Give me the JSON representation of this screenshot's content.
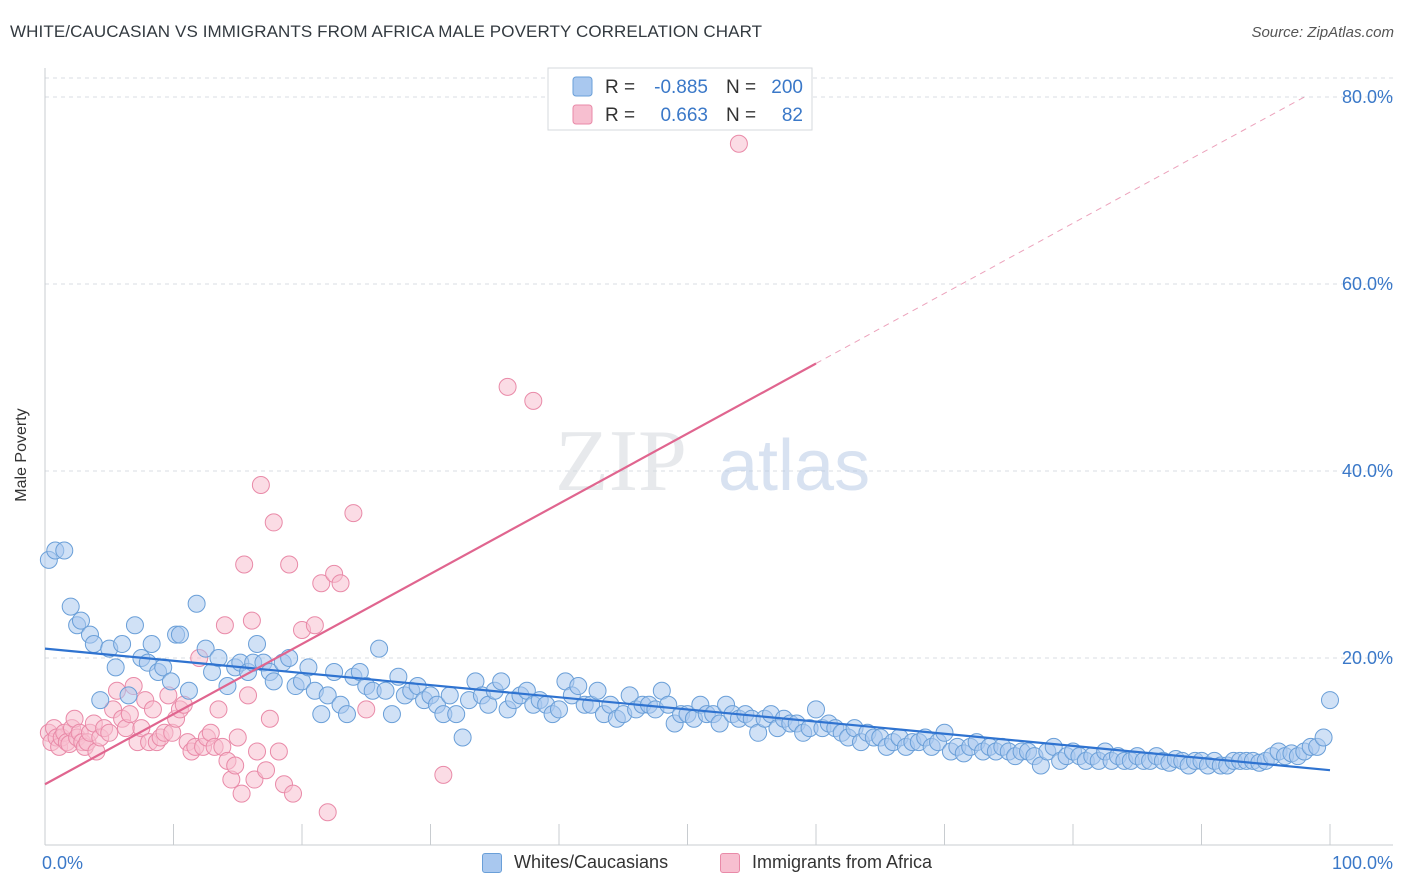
{
  "header": {
    "title": "WHITE/CAUCASIAN VS IMMIGRANTS FROM AFRICA MALE POVERTY CORRELATION CHART",
    "source": "Source: ZipAtlas.com"
  },
  "watermark": {
    "zip": "ZIP",
    "atlas": "atlas"
  },
  "legend_top": {
    "rows": [
      {
        "r_label": "R =",
        "r_value": "-0.885",
        "n_label": "N =",
        "n_value": "200"
      },
      {
        "r_label": "R =",
        "r_value": "0.663",
        "n_label": "N =",
        "n_value": "82"
      }
    ]
  },
  "legend_bottom": {
    "items": [
      "Whites/Caucasians",
      "Immigrants from Africa"
    ]
  },
  "colors": {
    "blue_fill": "#a9c8ef",
    "blue_stroke": "#6a9fd8",
    "blue_line": "#2f73d0",
    "pink_fill": "#f7bfd0",
    "pink_stroke": "#e98aa8",
    "pink_line": "#e0658f",
    "tick_text": "#3a78c8",
    "grid": "#d8dde3"
  },
  "chart_data": {
    "type": "scatter",
    "title": "WHITE/CAUCASIAN VS IMMIGRANTS FROM AFRICA MALE POVERTY CORRELATION CHART",
    "xlabel": "",
    "ylabel": "Male Poverty",
    "xlim": [
      0,
      100
    ],
    "ylim": [
      0,
      80
    ],
    "x_tick_labels": [
      "0.0%",
      "100.0%"
    ],
    "y_ticks": [
      20,
      40,
      60,
      80
    ],
    "y_tick_labels": [
      "20.0%",
      "40.0%",
      "60.0%",
      "80.0%"
    ],
    "grid": "horizontal dashed",
    "legend": "top-center",
    "series": [
      {
        "name": "Whites/Caucasians",
        "R": -0.885,
        "N": 200,
        "trend": {
          "x": [
            0,
            100
          ],
          "y": [
            21.0,
            8.0
          ]
        },
        "points": [
          [
            0.3,
            30.5
          ],
          [
            0.8,
            31.5
          ],
          [
            1.5,
            31.5
          ],
          [
            2,
            25.5
          ],
          [
            2.5,
            23.5
          ],
          [
            2.8,
            24
          ],
          [
            3.5,
            22.5
          ],
          [
            3.8,
            21.5
          ],
          [
            4.3,
            15.5
          ],
          [
            5,
            21
          ],
          [
            5.5,
            19
          ],
          [
            6,
            21.5
          ],
          [
            6.5,
            16
          ],
          [
            7,
            23.5
          ],
          [
            7.5,
            20
          ],
          [
            8,
            19.5
          ],
          [
            8.3,
            21.5
          ],
          [
            8.8,
            18.5
          ],
          [
            9.2,
            19
          ],
          [
            9.8,
            17.5
          ],
          [
            10.2,
            22.5
          ],
          [
            10.5,
            22.5
          ],
          [
            11.2,
            16.5
          ],
          [
            11.8,
            25.8
          ],
          [
            12.5,
            21
          ],
          [
            13,
            18.5
          ],
          [
            13.5,
            20
          ],
          [
            14.2,
            17
          ],
          [
            14.8,
            19
          ],
          [
            15.2,
            19.5
          ],
          [
            15.8,
            18.5
          ],
          [
            16.2,
            19.5
          ],
          [
            16.5,
            21.5
          ],
          [
            17,
            19.5
          ],
          [
            17.5,
            18.5
          ],
          [
            17.8,
            17.5
          ],
          [
            18.5,
            19.5
          ],
          [
            19,
            20
          ],
          [
            19.5,
            17
          ],
          [
            20,
            17.5
          ],
          [
            20.5,
            19
          ],
          [
            21,
            16.5
          ],
          [
            21.5,
            14
          ],
          [
            22,
            16
          ],
          [
            22.5,
            18.5
          ],
          [
            23,
            15
          ],
          [
            23.5,
            14
          ],
          [
            24,
            18
          ],
          [
            24.5,
            18.5
          ],
          [
            25,
            17
          ],
          [
            25.5,
            16.5
          ],
          [
            26,
            21
          ],
          [
            26.5,
            16.5
          ],
          [
            27,
            14
          ],
          [
            27.5,
            18
          ],
          [
            28,
            16
          ],
          [
            28.5,
            16.5
          ],
          [
            29,
            17
          ],
          [
            29.5,
            15.5
          ],
          [
            30,
            16
          ],
          [
            30.5,
            15
          ],
          [
            31,
            14
          ],
          [
            31.5,
            16
          ],
          [
            32,
            14
          ],
          [
            32.5,
            11.5
          ],
          [
            33,
            15.5
          ],
          [
            33.5,
            17.5
          ],
          [
            34,
            16
          ],
          [
            34.5,
            15
          ],
          [
            35,
            16.5
          ],
          [
            35.5,
            17.5
          ],
          [
            36,
            14.5
          ],
          [
            36.5,
            15.5
          ],
          [
            37,
            16
          ],
          [
            37.5,
            16.5
          ],
          [
            38,
            15
          ],
          [
            38.5,
            15.5
          ],
          [
            39,
            15
          ],
          [
            39.5,
            14
          ],
          [
            40,
            14.5
          ],
          [
            40.5,
            17.5
          ],
          [
            41,
            16
          ],
          [
            41.5,
            17
          ],
          [
            42,
            15
          ],
          [
            42.5,
            15
          ],
          [
            43,
            16.5
          ],
          [
            43.5,
            14
          ],
          [
            44,
            15
          ],
          [
            44.5,
            13.5
          ],
          [
            45,
            14
          ],
          [
            45.5,
            16
          ],
          [
            46,
            14.5
          ],
          [
            46.5,
            15
          ],
          [
            47,
            15
          ],
          [
            47.5,
            14.5
          ],
          [
            48,
            16.5
          ],
          [
            48.5,
            15
          ],
          [
            49,
            13
          ],
          [
            49.5,
            14
          ],
          [
            50,
            14
          ],
          [
            50.5,
            13.5
          ],
          [
            51,
            15
          ],
          [
            51.5,
            14
          ],
          [
            52,
            14
          ],
          [
            52.5,
            13
          ],
          [
            53,
            15
          ],
          [
            53.5,
            14
          ],
          [
            54,
            13.5
          ],
          [
            54.5,
            14
          ],
          [
            55,
            13.5
          ],
          [
            55.5,
            12
          ],
          [
            56,
            13.5
          ],
          [
            56.5,
            14
          ],
          [
            57,
            12.5
          ],
          [
            57.5,
            13.5
          ],
          [
            58,
            13
          ],
          [
            58.5,
            13
          ],
          [
            59,
            12
          ],
          [
            59.5,
            12.5
          ],
          [
            60,
            14.5
          ],
          [
            60.5,
            12.5
          ],
          [
            61,
            13
          ],
          [
            61.5,
            12.5
          ],
          [
            62,
            12
          ],
          [
            62.5,
            11.5
          ],
          [
            63,
            12.5
          ],
          [
            63.5,
            11
          ],
          [
            64,
            12
          ],
          [
            64.5,
            11.5
          ],
          [
            65,
            11.5
          ],
          [
            65.5,
            10.5
          ],
          [
            66,
            11
          ],
          [
            66.5,
            11.5
          ],
          [
            67,
            10.5
          ],
          [
            67.5,
            11
          ],
          [
            68,
            11
          ],
          [
            68.5,
            11.5
          ],
          [
            69,
            10.5
          ],
          [
            69.5,
            11
          ],
          [
            70,
            12
          ],
          [
            70.5,
            10
          ],
          [
            71,
            10.5
          ],
          [
            71.5,
            9.8
          ],
          [
            72,
            10.5
          ],
          [
            72.5,
            11
          ],
          [
            73,
            10
          ],
          [
            73.5,
            10.5
          ],
          [
            74,
            10
          ],
          [
            74.5,
            10.5
          ],
          [
            75,
            10
          ],
          [
            75.5,
            9.5
          ],
          [
            76,
            10
          ],
          [
            76.5,
            10
          ],
          [
            77,
            9.5
          ],
          [
            77.5,
            8.5
          ],
          [
            78,
            10
          ],
          [
            78.5,
            10.5
          ],
          [
            79,
            9
          ],
          [
            79.5,
            9.5
          ],
          [
            80,
            10
          ],
          [
            80.5,
            9.5
          ],
          [
            81,
            9
          ],
          [
            81.5,
            9.5
          ],
          [
            82,
            9
          ],
          [
            82.5,
            10
          ],
          [
            83,
            9
          ],
          [
            83.5,
            9.5
          ],
          [
            84,
            9
          ],
          [
            84.5,
            9
          ],
          [
            85,
            9.5
          ],
          [
            85.5,
            9
          ],
          [
            86,
            9
          ],
          [
            86.5,
            9.5
          ],
          [
            87,
            9
          ],
          [
            87.5,
            8.8
          ],
          [
            88,
            9.2
          ],
          [
            88.5,
            9
          ],
          [
            89,
            8.5
          ],
          [
            89.5,
            9
          ],
          [
            90,
            9
          ],
          [
            90.5,
            8.5
          ],
          [
            91,
            9
          ],
          [
            91.5,
            8.5
          ],
          [
            92,
            8.5
          ],
          [
            92.5,
            9
          ],
          [
            93,
            9
          ],
          [
            93.5,
            9
          ],
          [
            94,
            9
          ],
          [
            94.5,
            8.8
          ],
          [
            95,
            9
          ],
          [
            95.5,
            9.5
          ],
          [
            96,
            10
          ],
          [
            96.5,
            9.5
          ],
          [
            97,
            9.8
          ],
          [
            97.5,
            9.5
          ],
          [
            98,
            10
          ],
          [
            98.5,
            10.5
          ],
          [
            99,
            10.5
          ],
          [
            99.5,
            11.5
          ],
          [
            100,
            15.5
          ]
        ]
      },
      {
        "name": "Immigrants from Africa",
        "R": 0.663,
        "N": 82,
        "trend": {
          "x": [
            0,
            60
          ],
          "y": [
            6.5,
            51.5
          ]
        },
        "trend_dashed": {
          "x": [
            60,
            98
          ],
          "y": [
            51.5,
            80
          ]
        },
        "points": [
          [
            0.3,
            12
          ],
          [
            0.5,
            11
          ],
          [
            0.7,
            12.5
          ],
          [
            0.9,
            11.5
          ],
          [
            1.1,
            10.5
          ],
          [
            1.3,
            11.5
          ],
          [
            1.5,
            12
          ],
          [
            1.7,
            11
          ],
          [
            1.9,
            10.8
          ],
          [
            2.1,
            12.5
          ],
          [
            2.3,
            13.5
          ],
          [
            2.5,
            11.5
          ],
          [
            2.7,
            12
          ],
          [
            2.9,
            11
          ],
          [
            3.1,
            10.5
          ],
          [
            3.3,
            11
          ],
          [
            3.5,
            12
          ],
          [
            3.8,
            13
          ],
          [
            4,
            10
          ],
          [
            4.3,
            11.5
          ],
          [
            4.6,
            12.5
          ],
          [
            5,
            12
          ],
          [
            5.3,
            14.5
          ],
          [
            5.6,
            16.5
          ],
          [
            6,
            13.5
          ],
          [
            6.3,
            12.5
          ],
          [
            6.6,
            14
          ],
          [
            6.9,
            17
          ],
          [
            7.2,
            11
          ],
          [
            7.5,
            12.5
          ],
          [
            7.8,
            15.5
          ],
          [
            8.1,
            11
          ],
          [
            8.4,
            14.5
          ],
          [
            8.7,
            11
          ],
          [
            9,
            11.5
          ],
          [
            9.3,
            12
          ],
          [
            9.6,
            16
          ],
          [
            9.9,
            12
          ],
          [
            10.2,
            13.5
          ],
          [
            10.5,
            14.5
          ],
          [
            10.8,
            15
          ],
          [
            11.1,
            11
          ],
          [
            11.4,
            10
          ],
          [
            11.7,
            10.5
          ],
          [
            12,
            20
          ],
          [
            12.3,
            10.5
          ],
          [
            12.6,
            11.5
          ],
          [
            12.9,
            12
          ],
          [
            13.2,
            10.5
          ],
          [
            13.5,
            14.5
          ],
          [
            13.8,
            10.5
          ],
          [
            14,
            23.5
          ],
          [
            14.2,
            9
          ],
          [
            14.5,
            7
          ],
          [
            14.8,
            8.5
          ],
          [
            15,
            11.5
          ],
          [
            15.3,
            5.5
          ],
          [
            15.5,
            30
          ],
          [
            15.8,
            16
          ],
          [
            16.1,
            24
          ],
          [
            16.3,
            7
          ],
          [
            16.5,
            10
          ],
          [
            16.8,
            38.5
          ],
          [
            17.2,
            8
          ],
          [
            17.5,
            13.5
          ],
          [
            17.8,
            34.5
          ],
          [
            18.2,
            10
          ],
          [
            18.6,
            6.5
          ],
          [
            19,
            30
          ],
          [
            19.3,
            5.5
          ],
          [
            20,
            23
          ],
          [
            21,
            23.5
          ],
          [
            21.5,
            28
          ],
          [
            22,
            3.5
          ],
          [
            22.5,
            29
          ],
          [
            23,
            28
          ],
          [
            24,
            35.5
          ],
          [
            25,
            14.5
          ],
          [
            31,
            7.5
          ],
          [
            36,
            49
          ],
          [
            38,
            47.5
          ],
          [
            54,
            75
          ]
        ]
      }
    ]
  }
}
